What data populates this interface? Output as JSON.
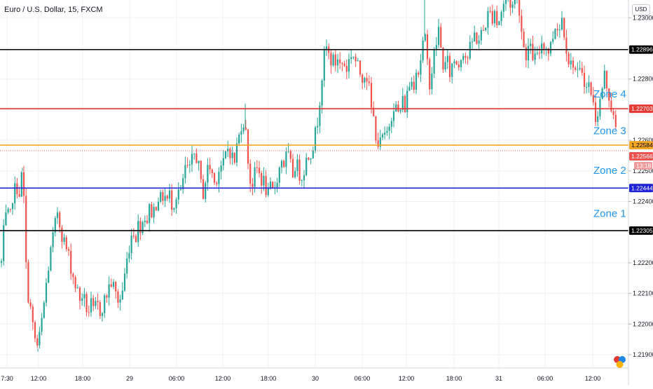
{
  "chart_data": {
    "type": "candlestick",
    "title": "Euro / U.S. Dollar, 15, FXCM",
    "currency_label": "USD",
    "ylim": [
      1.2185,
      1.2313
    ],
    "x_tick_labels": [
      "7:30",
      "12:00",
      "18:00",
      "29",
      "06:00",
      "12:00",
      "18:00",
      "30",
      "06:00",
      "12:00",
      "18:00",
      "31",
      "06:00",
      "12:00"
    ],
    "y_tick_labels": [
      "1.23100",
      "1.23000",
      "1.22900",
      "1.22800",
      "1.22700",
      "1.22600",
      "1.22500",
      "1.22400",
      "1.22300",
      "1.22200",
      "1.22100",
      "1.22000",
      "1.21900"
    ],
    "y_tick_values": [
      1.231,
      1.23,
      1.229,
      1.228,
      1.227,
      1.226,
      1.225,
      1.224,
      1.223,
      1.222,
      1.221,
      1.22,
      1.219
    ],
    "horizontal_levels": [
      {
        "value": 1.22896,
        "label": "1.22896",
        "color": "#000000"
      },
      {
        "value": 1.22703,
        "label": "1.22703",
        "color": "#e53935"
      },
      {
        "value": 1.22584,
        "label": "1.22584",
        "color": "#f5a623"
      },
      {
        "value": 1.22444,
        "label": "1.22444",
        "color": "#1e22d6"
      },
      {
        "value": 1.22305,
        "label": "1.22305",
        "color": "#000000"
      }
    ],
    "current_price": {
      "value": 1.22566,
      "label": "1.22566",
      "countdown": "13:18",
      "color": "#ef5350"
    },
    "zones": [
      {
        "label": "Zone 4",
        "value": 1.2274
      },
      {
        "label": "Zone 3",
        "value": 1.2262
      },
      {
        "label": "Zone 2",
        "value": 1.2249
      },
      {
        "label": "Zone 1",
        "value": 1.2235
      }
    ],
    "price_path": [
      [
        0,
        1.222
      ],
      [
        4,
        1.2232
      ],
      [
        8,
        1.2236
      ],
      [
        12,
        1.2233
      ],
      [
        16,
        1.2242
      ],
      [
        22,
        1.2245
      ],
      [
        26,
        1.2243
      ],
      [
        30,
        1.225
      ],
      [
        33,
        1.2236
      ],
      [
        36,
        1.2212
      ],
      [
        40,
        1.2208
      ],
      [
        44,
        1.22
      ],
      [
        48,
        1.2195
      ],
      [
        52,
        1.2192
      ],
      [
        56,
        1.2198
      ],
      [
        60,
        1.2205
      ],
      [
        64,
        1.2213
      ],
      [
        68,
        1.222
      ],
      [
        72,
        1.2226
      ],
      [
        76,
        1.2231
      ],
      [
        80,
        1.2237
      ],
      [
        84,
        1.2232
      ],
      [
        88,
        1.2228
      ],
      [
        92,
        1.2225
      ],
      [
        96,
        1.2222
      ],
      [
        100,
        1.2218
      ],
      [
        104,
        1.2214
      ],
      [
        108,
        1.2211
      ],
      [
        112,
        1.2208
      ],
      [
        116,
        1.221
      ],
      [
        120,
        1.2206
      ],
      [
        124,
        1.2204
      ],
      [
        128,
        1.2206
      ],
      [
        132,
        1.2203
      ],
      [
        136,
        1.2207
      ],
      [
        140,
        1.2204
      ],
      [
        144,
        1.2206
      ],
      [
        148,
        1.2208
      ],
      [
        152,
        1.2211
      ],
      [
        156,
        1.2214
      ],
      [
        160,
        1.2212
      ],
      [
        164,
        1.2209
      ],
      [
        168,
        1.2207
      ],
      [
        172,
        1.221
      ],
      [
        176,
        1.2216
      ],
      [
        180,
        1.2222
      ],
      [
        184,
        1.2228
      ],
      [
        188,
        1.2231
      ],
      [
        192,
        1.2229
      ],
      [
        196,
        1.2233
      ],
      [
        200,
        1.2232
      ],
      [
        204,
        1.2236
      ],
      [
        208,
        1.2234
      ],
      [
        212,
        1.2238
      ],
      [
        216,
        1.2236
      ],
      [
        220,
        1.2239
      ],
      [
        224,
        1.2242
      ],
      [
        228,
        1.224
      ],
      [
        232,
        1.2243
      ],
      [
        236,
        1.224
      ],
      [
        240,
        1.2242
      ],
      [
        244,
        1.2239
      ],
      [
        248,
        1.2241
      ],
      [
        252,
        1.2244
      ],
      [
        256,
        1.2242
      ],
      [
        260,
        1.2248
      ],
      [
        264,
        1.2252
      ],
      [
        268,
        1.2249
      ],
      [
        272,
        1.2253
      ],
      [
        276,
        1.2256
      ],
      [
        280,
        1.2254
      ],
      [
        284,
        1.2246
      ],
      [
        288,
        1.2243
      ],
      [
        292,
        1.2248
      ],
      [
        296,
        1.2252
      ],
      [
        300,
        1.225
      ],
      [
        304,
        1.2246
      ],
      [
        308,
        1.2249
      ],
      [
        312,
        1.2252
      ],
      [
        316,
        1.2251
      ],
      [
        320,
        1.2255
      ],
      [
        324,
        1.2258
      ],
      [
        328,
        1.2256
      ],
      [
        332,
        1.2252
      ],
      [
        336,
        1.2258
      ],
      [
        340,
        1.2262
      ],
      [
        344,
        1.2268
      ],
      [
        348,
        1.2264
      ],
      [
        352,
        1.2254
      ],
      [
        356,
        1.2245
      ],
      [
        360,
        1.2247
      ],
      [
        364,
        1.2251
      ],
      [
        368,
        1.2249
      ],
      [
        372,
        1.2247
      ],
      [
        376,
        1.2246
      ],
      [
        380,
        1.2241
      ],
      [
        384,
        1.2244
      ],
      [
        388,
        1.2243
      ],
      [
        392,
        1.2247
      ],
      [
        396,
        1.225
      ],
      [
        400,
        1.2254
      ],
      [
        404,
        1.2252
      ],
      [
        408,
        1.2256
      ],
      [
        412,
        1.2252
      ],
      [
        416,
        1.2249
      ],
      [
        420,
        1.2253
      ],
      [
        424,
        1.225
      ],
      [
        428,
        1.2248
      ],
      [
        432,
        1.2251
      ],
      [
        436,
        1.2254
      ],
      [
        440,
        1.2256
      ],
      [
        444,
        1.2258
      ],
      [
        448,
        1.2262
      ],
      [
        452,
        1.2268
      ],
      [
        456,
        1.2278
      ],
      [
        460,
        1.2286
      ],
      [
        464,
        1.229
      ],
      [
        468,
        1.2287
      ],
      [
        472,
        1.2286
      ],
      [
        476,
        1.2285
      ],
      [
        480,
        1.2287
      ],
      [
        484,
        1.2284
      ],
      [
        488,
        1.2286
      ],
      [
        492,
        1.2283
      ],
      [
        496,
        1.2286
      ],
      [
        500,
        1.2289
      ],
      [
        504,
        1.2287
      ],
      [
        508,
        1.2284
      ],
      [
        512,
        1.2282
      ],
      [
        516,
        1.2281
      ],
      [
        520,
        1.2283
      ],
      [
        524,
        1.2278
      ],
      [
        528,
        1.227
      ],
      [
        532,
        1.2266
      ],
      [
        536,
        1.226
      ],
      [
        540,
        1.2258
      ],
      [
        544,
        1.2261
      ],
      [
        548,
        1.226
      ],
      [
        552,
        1.2264
      ],
      [
        556,
        1.2268
      ],
      [
        560,
        1.2272
      ],
      [
        564,
        1.227
      ],
      [
        568,
        1.2268
      ],
      [
        572,
        1.2273
      ],
      [
        576,
        1.2271
      ],
      [
        580,
        1.2276
      ],
      [
        584,
        1.228
      ],
      [
        588,
        1.2278
      ],
      [
        592,
        1.2284
      ],
      [
        596,
        1.2282
      ],
      [
        600,
        1.229
      ],
      [
        604,
        1.2294
      ],
      [
        608,
        1.2285
      ],
      [
        612,
        1.2278
      ],
      [
        616,
        1.2286
      ],
      [
        620,
        1.2291
      ],
      [
        624,
        1.2296
      ],
      [
        628,
        1.2288
      ],
      [
        632,
        1.2283
      ],
      [
        636,
        1.2286
      ],
      [
        640,
        1.2282
      ],
      [
        644,
        1.2285
      ],
      [
        648,
        1.2287
      ],
      [
        652,
        1.2284
      ],
      [
        656,
        1.2288
      ],
      [
        660,
        1.229
      ],
      [
        664,
        1.2286
      ],
      [
        668,
        1.2289
      ],
      [
        672,
        1.2292
      ],
      [
        676,
        1.2295
      ],
      [
        680,
        1.2292
      ],
      [
        684,
        1.2294
      ],
      [
        688,
        1.2296
      ],
      [
        692,
        1.2299
      ],
      [
        696,
        1.2302
      ],
      [
        700,
        1.23
      ],
      [
        704,
        1.2303
      ],
      [
        708,
        1.2297
      ],
      [
        712,
        1.2301
      ],
      [
        716,
        1.2304
      ],
      [
        720,
        1.2306
      ],
      [
        724,
        1.2307
      ],
      [
        728,
        1.2303
      ],
      [
        732,
        1.2306
      ],
      [
        736,
        1.2308
      ],
      [
        740,
        1.2302
      ],
      [
        744,
        1.2292
      ],
      [
        748,
        1.2288
      ],
      [
        752,
        1.229
      ],
      [
        756,
        1.2289
      ],
      [
        760,
        1.2287
      ],
      [
        764,
        1.2286
      ],
      [
        768,
        1.2289
      ],
      [
        772,
        1.2293
      ],
      [
        776,
        1.2291
      ],
      [
        780,
        1.2289
      ],
      [
        784,
        1.2291
      ],
      [
        788,
        1.2295
      ],
      [
        792,
        1.2299
      ],
      [
        796,
        1.2296
      ],
      [
        800,
        1.23
      ],
      [
        804,
        1.2295
      ],
      [
        808,
        1.2288
      ],
      [
        812,
        1.2284
      ],
      [
        816,
        1.2286
      ],
      [
        820,
        1.2282
      ],
      [
        824,
        1.228
      ],
      [
        828,
        1.2284
      ],
      [
        832,
        1.228
      ],
      [
        836,
        1.2276
      ],
      [
        840,
        1.2279
      ],
      [
        844,
        1.2272
      ],
      [
        848,
        1.2268
      ],
      [
        852,
        1.227
      ],
      [
        856,
        1.2274
      ],
      [
        860,
        1.2282
      ],
      [
        864,
        1.2278
      ],
      [
        868,
        1.2274
      ],
      [
        872,
        1.2269
      ],
      [
        876,
        1.2264
      ],
      [
        880,
        1.2257
      ]
    ]
  }
}
